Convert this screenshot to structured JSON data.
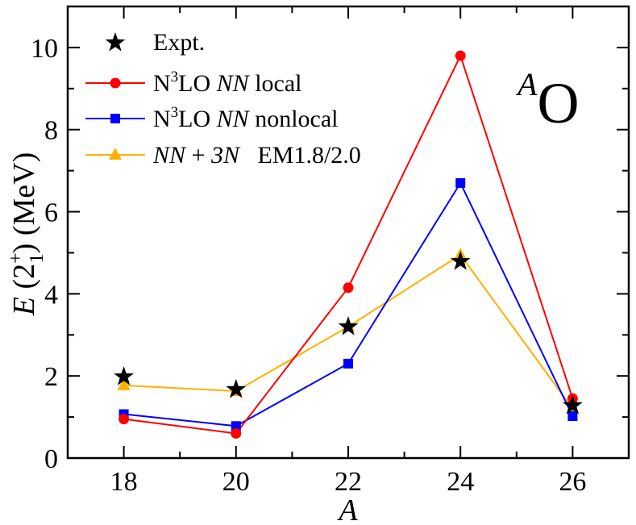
{
  "chart_data": {
    "type": "line",
    "xlabel": "A",
    "ylabel": "E (2⁺₁) (MeV)",
    "xlim": [
      17,
      27
    ],
    "ylim": [
      0,
      11
    ],
    "x_ticks": [
      18,
      20,
      22,
      24,
      26
    ],
    "y_ticks": [
      0,
      2,
      4,
      6,
      8,
      10
    ],
    "grid": false,
    "legend_position": "top-left",
    "annotation": {
      "superscript": "A",
      "symbol": "O"
    },
    "x": [
      18,
      20,
      22,
      24,
      26
    ],
    "series": [
      {
        "name": "Expt.",
        "marker": "star",
        "color": "#000000",
        "line": false,
        "values": [
          1.98,
          1.67,
          3.2,
          4.79,
          1.28
        ]
      },
      {
        "name": "N3LO NN local",
        "name_parts": {
          "pre": "N",
          "sup": "3",
          "mid": "LO ",
          "italic": "NN",
          "post": " local"
        },
        "marker": "circle",
        "color": "#ff0000",
        "line": true,
        "values": [
          0.95,
          0.6,
          4.15,
          9.8,
          1.45
        ]
      },
      {
        "name": "N3LO NN nonlocal",
        "name_parts": {
          "pre": "N",
          "sup": "3",
          "mid": "LO ",
          "italic": "NN",
          "post": " nonlocal"
        },
        "marker": "square",
        "color": "#0000ff",
        "line": true,
        "values": [
          1.07,
          0.78,
          2.3,
          6.7,
          1.02
        ]
      },
      {
        "name": "NN + 3N EM1.8/2.0",
        "name_parts": {
          "italic1": "NN",
          "plus": " + ",
          "italic2": "3N",
          "post": "   EM1.8/2.0"
        },
        "marker": "triangle",
        "color": "#ffb000",
        "line": true,
        "values": [
          1.77,
          1.63,
          3.2,
          4.95,
          1.2
        ]
      }
    ]
  }
}
